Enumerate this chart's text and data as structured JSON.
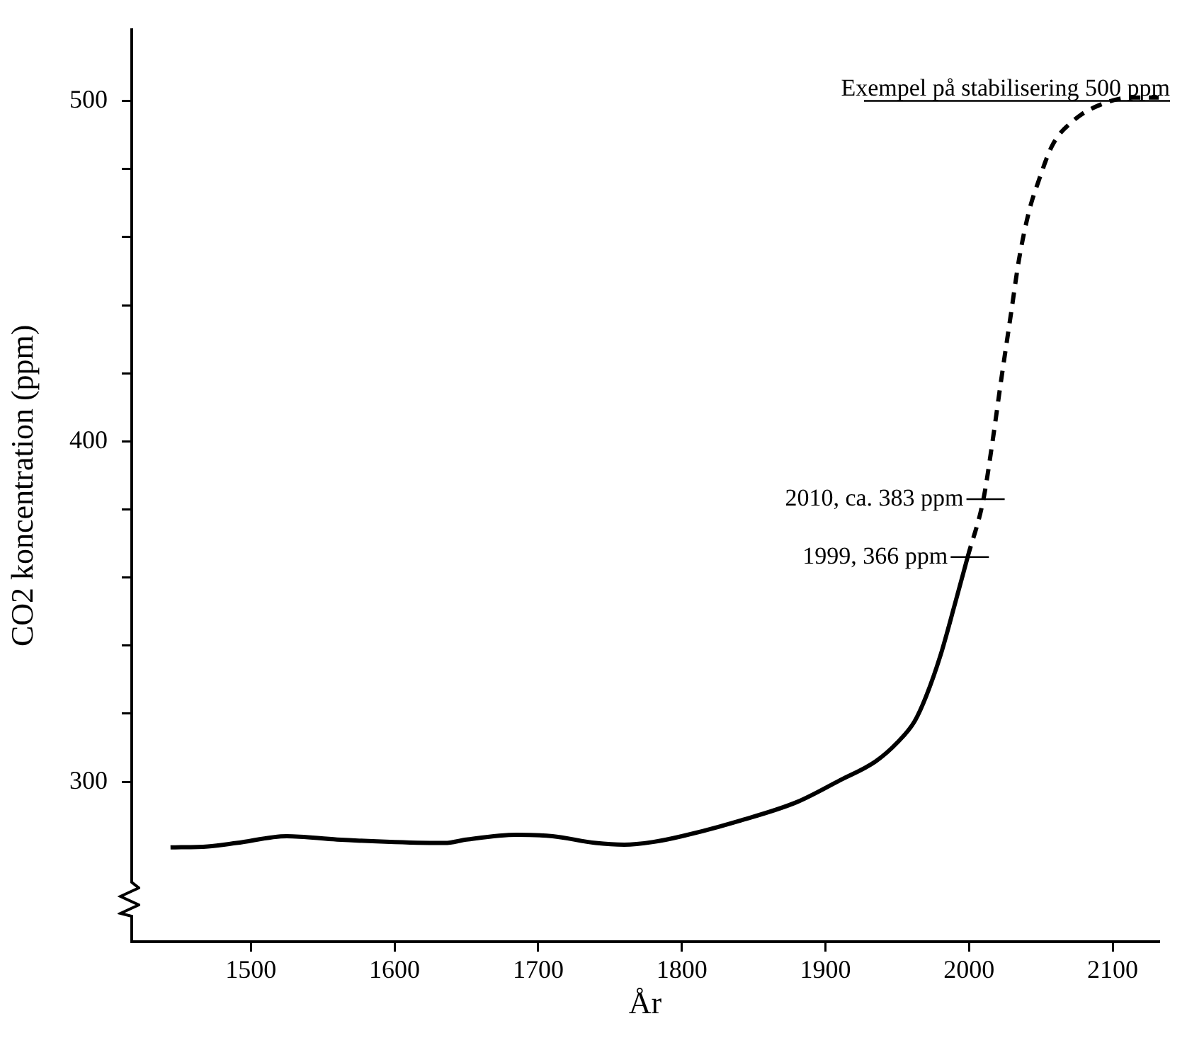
{
  "chart_data": {
    "type": "line",
    "xlabel": "År",
    "ylabel": "CO2 koncentration (ppm)",
    "xlim": [
      1417,
      2132
    ],
    "xticks": [
      1500,
      1600,
      1700,
      1800,
      1900,
      2000,
      2100
    ],
    "ylim": [
      253,
      521
    ],
    "yticks": [
      300,
      {
        "value": 320,
        "label": null
      },
      {
        "value": 340,
        "label": null
      },
      {
        "value": 360,
        "label": null
      },
      {
        "value": 380,
        "label": null
      },
      400,
      {
        "value": 420,
        "label": null
      },
      {
        "value": 440,
        "label": null
      },
      {
        "value": 460,
        "label": null
      },
      {
        "value": 480,
        "label": null
      },
      500
    ],
    "grid": false,
    "legend": false,
    "marker": "none",
    "series": [
      {
        "color": "#000000",
        "line_style": "solid",
        "x": [
          1444,
          1470,
          1490,
          1525,
          1560,
          1600,
          1635,
          1650,
          1685,
          1710,
          1740,
          1760,
          1780,
          1800,
          1840,
          1880,
          1910,
          1935,
          1950,
          1962,
          1970,
          1980,
          1990,
          1999
        ],
        "values": [
          280.7,
          281,
          282,
          284,
          283,
          282.3,
          282,
          283,
          284.4,
          284,
          282,
          281.5,
          282.3,
          284,
          288.5,
          294,
          300.4,
          306,
          311.5,
          317.7,
          325,
          337,
          352,
          366
        ]
      },
      {
        "color": "#000000",
        "line_style": "dashed",
        "x": [
          1999,
          2010,
          2016,
          2022,
          2029,
          2035,
          2042,
          2048,
          2058,
          2072,
          2092,
          2114,
          2132
        ],
        "values": [
          366,
          383,
          399,
          417,
          437,
          454,
          468,
          476,
          487,
          494,
          499,
          501,
          501
        ]
      }
    ],
    "ref_lines": [
      {
        "axis": "y",
        "value": 500,
        "label": "Exempel på stabilisering 500 ppm"
      }
    ],
    "annotations": [
      {
        "text": "2010, ca. 383 ppm",
        "x": 2010,
        "y": 383
      },
      {
        "text": "1999, 366 ppm",
        "x": 1999,
        "y": 366
      }
    ]
  }
}
